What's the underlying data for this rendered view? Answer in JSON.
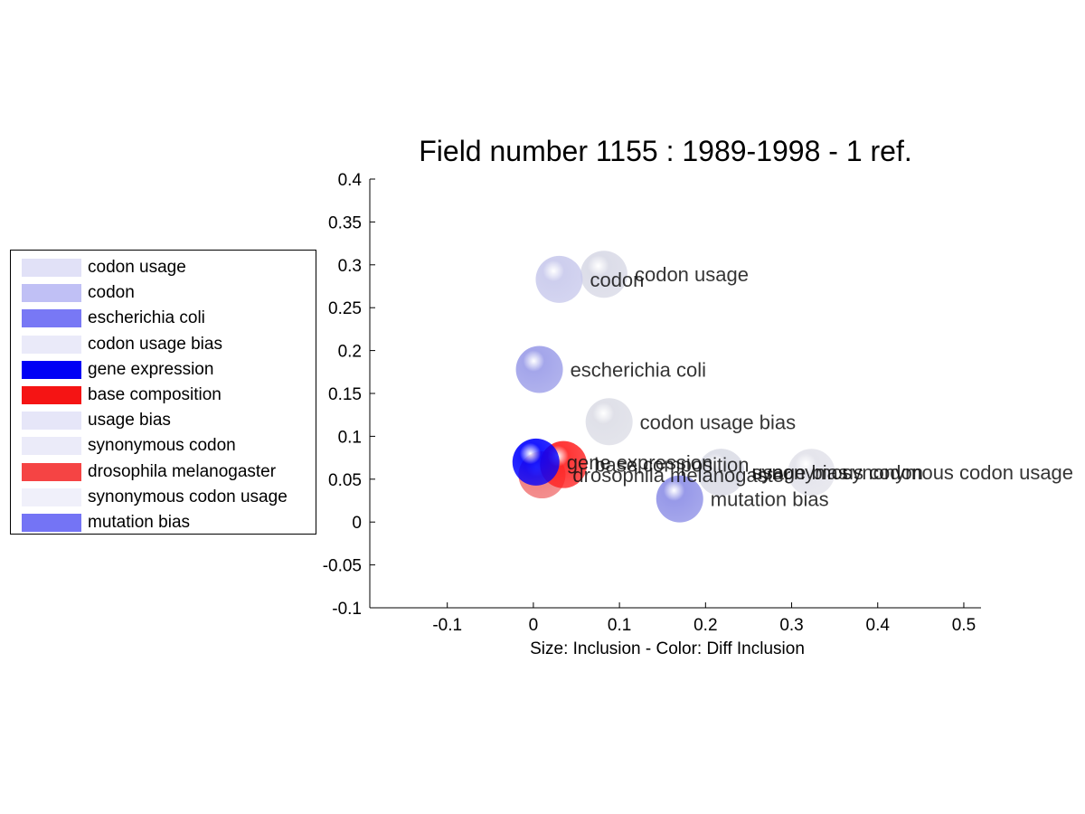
{
  "chart_data": {
    "type": "scatter",
    "title": "Field number 1155 : 1989-1998  - 1 ref.",
    "xlabel": "Size: Inclusion - Color: Diff Inclusion",
    "ylabel": "",
    "xlim": [
      -0.19,
      0.52
    ],
    "ylim": [
      -0.1,
      0.4
    ],
    "xticks": [
      "-0.1",
      "0",
      "0.1",
      "0.2",
      "0.3",
      "0.4",
      "0.5"
    ],
    "xtick_values": [
      -0.1,
      0,
      0.1,
      0.2,
      0.3,
      0.4,
      0.5
    ],
    "yticks": [
      "-0.1",
      "-0.05",
      "0",
      "0.05",
      "0.1",
      "0.15",
      "0.2",
      "0.25",
      "0.3",
      "0.35",
      "0.4"
    ],
    "ytick_values": [
      -0.1,
      -0.05,
      0,
      0.05,
      0.1,
      0.15,
      0.2,
      0.25,
      0.3,
      0.35,
      0.4
    ],
    "grid": false,
    "legend_position": "left",
    "points": [
      {
        "label": "codon usage bias",
        "x": 0.088,
        "y": 0.117,
        "size": 1.0,
        "color": "#dcdde6"
      },
      {
        "label": "synonymous codon usage",
        "x": 0.323,
        "y": 0.058,
        "size": 1.0,
        "color": "#e2e2ea"
      },
      {
        "label": "usage bias",
        "x": 0.218,
        "y": 0.058,
        "size": 1.0,
        "color": "#dedfe8"
      },
      {
        "label": "synonymous codon",
        "x": 0.218,
        "y": 0.058,
        "size": 1.0,
        "color": "#dedfe8"
      },
      {
        "label": "codon usage",
        "x": 0.082,
        "y": 0.289,
        "size": 1.0,
        "color": "#d8d9e6"
      },
      {
        "label": "codon",
        "x": 0.03,
        "y": 0.283,
        "size": 1.0,
        "color": "#c8c9ec"
      },
      {
        "label": "escherichia coli",
        "x": 0.007,
        "y": 0.178,
        "size": 1.0,
        "color": "#9a9ce8"
      },
      {
        "label": "mutation bias",
        "x": 0.17,
        "y": 0.027,
        "size": 1.0,
        "color": "#8c8ee6"
      },
      {
        "label": "drosophila melanogaster",
        "x": 0.01,
        "y": 0.055,
        "size": 1.0,
        "color": "#f07070"
      },
      {
        "label": "base composition",
        "x": 0.035,
        "y": 0.067,
        "size": 1.0,
        "color": "#ff2020"
      },
      {
        "label": "gene expression",
        "x": 0.003,
        "y": 0.07,
        "size": 1.0,
        "color": "#0000ff"
      }
    ],
    "legend": [
      {
        "label": "codon usage",
        "color": "#e1e1f7"
      },
      {
        "label": "codon",
        "color": "#c0c0f5"
      },
      {
        "label": "escherichia coli",
        "color": "#7878f5"
      },
      {
        "label": "codon usage bias",
        "color": "#eaeaf9"
      },
      {
        "label": "gene expression",
        "color": "#0000f5"
      },
      {
        "label": "base composition",
        "color": "#f51414"
      },
      {
        "label": "usage bias",
        "color": "#e6e6f8"
      },
      {
        "label": "synonymous codon",
        "color": "#ebebf9"
      },
      {
        "label": "drosophila melanogaster",
        "color": "#f54444"
      },
      {
        "label": "synonymous codon usage",
        "color": "#f0f0fa"
      },
      {
        "label": "mutation bias",
        "color": "#7474f5"
      }
    ]
  }
}
